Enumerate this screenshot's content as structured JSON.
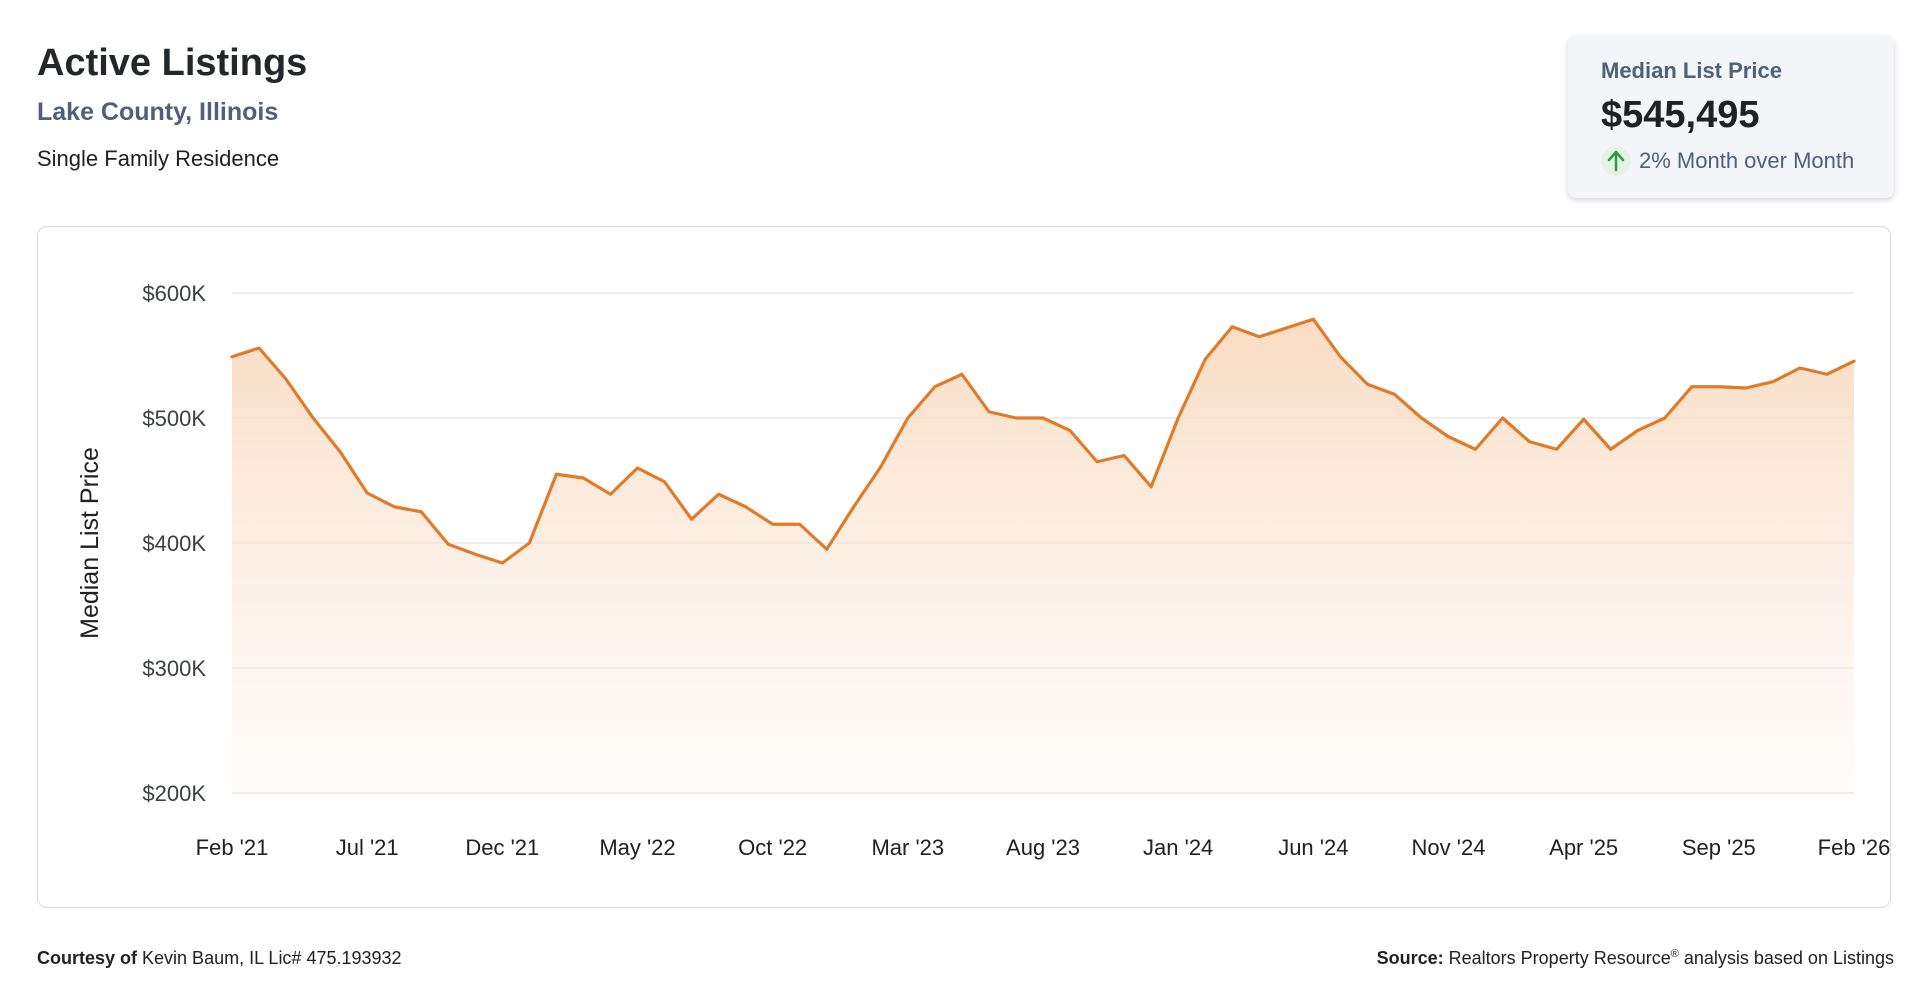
{
  "header": {
    "title": "Active Listings",
    "region": "Lake County, Illinois",
    "property_type": "Single Family Residence"
  },
  "summary_card": {
    "label": "Median List Price",
    "value": "$545,495",
    "change_text": "2% Month over Month",
    "change_icon": "arrow-up-icon",
    "change_color": "#2e9a4f"
  },
  "footer": {
    "courtesy_label": "Courtesy of",
    "courtesy_text": "Kevin Baum, IL Lic# 475.193932",
    "source_label": "Source:",
    "source_text_a": "Realtors Property Resource",
    "source_reg": "®",
    "source_text_b": "analysis based on Listings"
  },
  "colors": {
    "line": "#e07b2a",
    "fill_top": "#f8d6b8",
    "grid": "#e2e4e7",
    "axis_text": "#3c4043"
  },
  "chart_data": {
    "type": "area",
    "title": "",
    "xlabel": "",
    "ylabel": "Median List Price",
    "ylim": [
      200000,
      600000
    ],
    "y_ticks": [
      200000,
      300000,
      400000,
      500000,
      600000
    ],
    "y_tick_labels": [
      "$200K",
      "$300K",
      "$400K",
      "$500K",
      "$600K"
    ],
    "x_tick_labels": [
      "Feb '21",
      "Jul '21",
      "Dec '21",
      "May '22",
      "Oct '22",
      "Mar '23",
      "Aug '23",
      "Jan '24",
      "Jun '24",
      "Nov '24",
      "Apr '25",
      "Sep '25",
      "Feb '26"
    ],
    "x_tick_every": 5,
    "grid": true,
    "legend": "none",
    "series": [
      {
        "name": "",
        "x": [
          "Feb '21",
          "Mar '21",
          "Apr '21",
          "May '21",
          "Jun '21",
          "Jul '21",
          "Aug '21",
          "Sep '21",
          "Oct '21",
          "Nov '21",
          "Dec '21",
          "Jan '22",
          "Feb '22",
          "Mar '22",
          "Apr '22",
          "May '22",
          "Jun '22",
          "Jul '22",
          "Aug '22",
          "Sep '22",
          "Oct '22",
          "Nov '22",
          "Dec '22",
          "Jan '23",
          "Feb '23",
          "Mar '23",
          "Apr '23",
          "May '23",
          "Jun '23",
          "Jul '23",
          "Aug '23",
          "Sep '23",
          "Oct '23",
          "Nov '23",
          "Dec '23",
          "Jan '24",
          "Feb '24",
          "Mar '24",
          "Apr '24",
          "May '24",
          "Jun '24",
          "Jul '24",
          "Aug '24",
          "Sep '24",
          "Oct '24",
          "Nov '24",
          "Dec '24",
          "Jan '25",
          "Feb '25",
          "Mar '25",
          "Apr '25",
          "May '25",
          "Jun '25",
          "Jul '25",
          "Aug '25",
          "Sep '25",
          "Oct '25",
          "Nov '25",
          "Dec '25",
          "Jan '26",
          "Feb '26"
        ],
        "values": [
          549000,
          556000,
          531000,
          500000,
          473000,
          440000,
          429000,
          425000,
          399000,
          391000,
          384000,
          400000,
          455000,
          452000,
          439000,
          460000,
          449000,
          419000,
          439000,
          429000,
          415000,
          415000,
          395000,
          429000,
          461000,
          500000,
          525000,
          535000,
          505000,
          500000,
          500000,
          490000,
          465000,
          470000,
          445000,
          500000,
          547000,
          573000,
          565000,
          572000,
          579000,
          549000,
          527000,
          519000,
          500000,
          485000,
          475000,
          500000,
          481000,
          475000,
          499000,
          475000,
          490000,
          500000,
          525000,
          525000,
          524000,
          529000,
          540000,
          535000,
          545495
        ]
      }
    ]
  }
}
